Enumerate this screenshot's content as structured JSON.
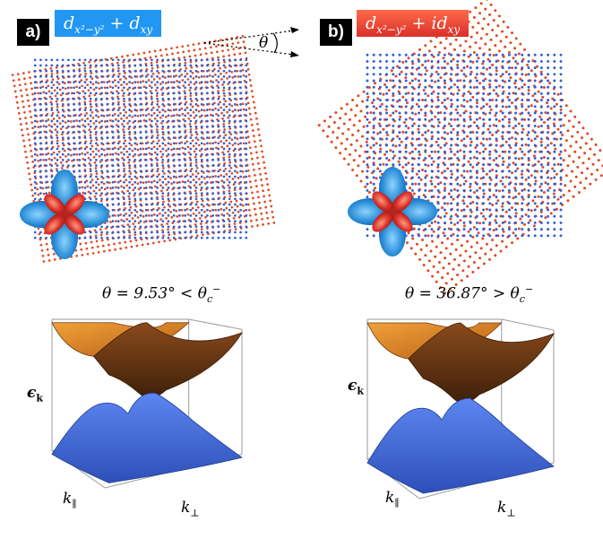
{
  "panels": [
    {
      "tag": "a)",
      "formula": "d",
      "formula_sub1": "x²−y²",
      "formula_mid": " + d",
      "formula_sub2": "xy",
      "formula_color": "#2196f3",
      "caption": "θ = 9.53° < θ",
      "caption_sub": "c",
      "caption_sup": "−",
      "twist_deg": 9.53
    },
    {
      "tag": "b)",
      "formula": "d",
      "formula_sub1": "x²−y²",
      "formula_mid": " + id",
      "formula_sub2": "xy",
      "formula_color": "#d9302a",
      "caption": "θ = 36.87° > θ",
      "caption_sub": "c",
      "caption_sup": "−",
      "twist_deg": 36.87
    }
  ],
  "angle_label": "θ",
  "energy_label": "ϵ",
  "energy_sub": "k",
  "kpar_label": "k",
  "kpar_sub": "∥",
  "kperp_label": "k",
  "kperp_sub": "⊥",
  "colors": {
    "lattice_top": "#2f5fd6",
    "lattice_bottom": "#e24a22",
    "orbital_blue": "#2a8fd8",
    "orbital_red": "#d9302a",
    "band_upper": "#6b3a16",
    "band_upper_light": "#e28a2a",
    "band_lower": "#3d63d9"
  }
}
